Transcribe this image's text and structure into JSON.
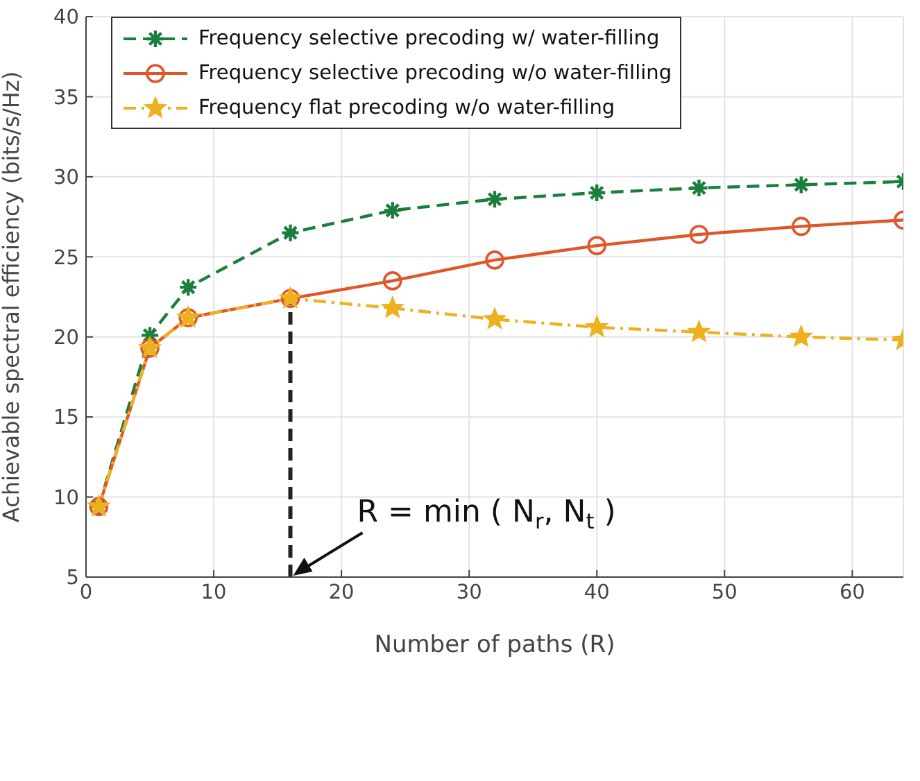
{
  "chart_data": {
    "type": "line",
    "xlabel": "Number of paths (R)",
    "ylabel": "Achievable spectral efficiency (bits/s/Hz)",
    "x": [
      1,
      5,
      8,
      16,
      24,
      32,
      40,
      48,
      56,
      64
    ],
    "series": [
      {
        "name": "Frequency selective precoding w/ water-filling",
        "color": "#1a7f3c",
        "marker": "cross",
        "line_style": "dashed",
        "values": [
          9.4,
          20.1,
          23.1,
          26.5,
          27.9,
          28.6,
          29.0,
          29.3,
          29.5,
          29.7
        ]
      },
      {
        "name": "Frequency selective precoding w/o water-filling",
        "color": "#e0562a",
        "marker": "circle",
        "line_style": "solid",
        "values": [
          9.4,
          19.3,
          21.2,
          22.4,
          23.5,
          24.8,
          25.7,
          26.4,
          26.9,
          27.3
        ]
      },
      {
        "name": "Frequency flat precoding w/o water-filling",
        "color": "#edb120",
        "marker": "star",
        "line_style": "dashdot",
        "values": [
          9.4,
          19.3,
          21.2,
          22.4,
          21.8,
          21.1,
          20.6,
          20.3,
          20.0,
          19.8
        ]
      }
    ],
    "xlim": [
      0,
      64
    ],
    "xticks": [
      0,
      10,
      20,
      30,
      40,
      50,
      60
    ],
    "ylim": [
      5,
      40
    ],
    "yticks": [
      5,
      10,
      15,
      20,
      25,
      30,
      35,
      40
    ],
    "grid": true,
    "legend": "top left",
    "ref_lines": [
      {
        "axis": "x",
        "value": 16,
        "label": "R = min ( N$_{r}$, N$_{t}$ )",
        "color": "#222222",
        "line_style": "dashed"
      }
    ]
  }
}
